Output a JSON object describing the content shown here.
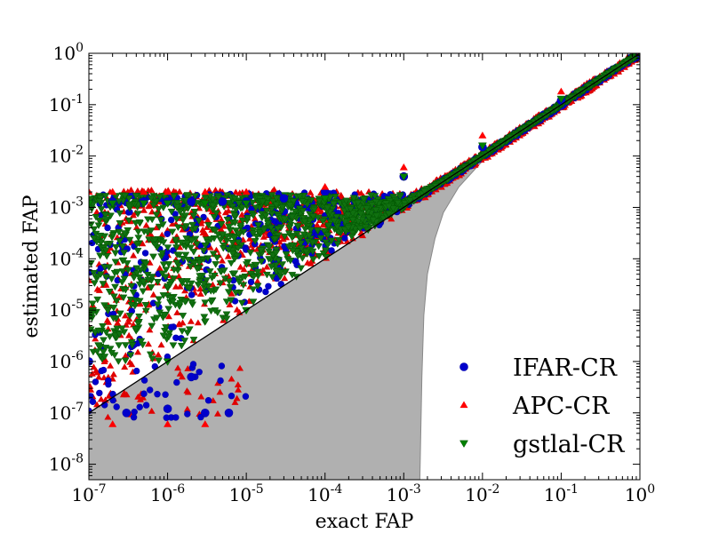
{
  "chart_data": {
    "type": "scatter",
    "title": "",
    "xlabel": "exact FAP",
    "ylabel": "estimated FAP",
    "x_scale": "log",
    "y_scale": "log",
    "xlim": [
      1e-07,
      1
    ],
    "ylim": [
      5e-09,
      1
    ],
    "x_ticks": [
      {
        "base": "10",
        "exp": "-7"
      },
      {
        "base": "10",
        "exp": "-6"
      },
      {
        "base": "10",
        "exp": "-5"
      },
      {
        "base": "10",
        "exp": "-4"
      },
      {
        "base": "10",
        "exp": "-3"
      },
      {
        "base": "10",
        "exp": "-2"
      },
      {
        "base": "10",
        "exp": "-1"
      },
      {
        "base": "10",
        "exp": "0"
      }
    ],
    "y_ticks": [
      {
        "base": "10",
        "exp": "-8"
      },
      {
        "base": "10",
        "exp": "-7"
      },
      {
        "base": "10",
        "exp": "-6"
      },
      {
        "base": "10",
        "exp": "-5"
      },
      {
        "base": "10",
        "exp": "-4"
      },
      {
        "base": "10",
        "exp": "-3"
      },
      {
        "base": "10",
        "exp": "-2"
      },
      {
        "base": "10",
        "exp": "-1"
      },
      {
        "base": "10",
        "exp": "0"
      }
    ],
    "grid": false,
    "legend_position": "bottom-right",
    "reference_line": {
      "x": [
        1e-07,
        1
      ],
      "y": [
        1e-07,
        1
      ],
      "color": "#000000"
    },
    "shaded_region": {
      "color": "#b0b0b0",
      "upper": {
        "x": [
          1e-07,
          1e-05,
          0.0001,
          0.001,
          0.003,
          0.01,
          0.1,
          1
        ],
        "y": [
          1e-07,
          1e-05,
          0.0001,
          0.001,
          0.003,
          0.01,
          0.1,
          1
        ]
      },
      "lower": {
        "x": [
          1e-07,
          0.0016,
          0.0017,
          0.0018,
          0.002,
          0.0025,
          0.0032,
          0.005,
          0.01,
          0.1,
          1
        ],
        "y": [
          5e-09,
          5e-09,
          5e-07,
          8e-06,
          5e-05,
          0.00025,
          0.0008,
          0.0025,
          0.008,
          0.08,
          1
        ]
      }
    },
    "series": [
      {
        "name": "IFAR-CR",
        "marker": "circle",
        "color": "#0000cc",
        "x": [
          1e-07,
          2e-07,
          5e-07,
          1e-06,
          2e-06,
          5e-06,
          1e-05,
          3e-05,
          0.0001,
          0.001,
          0.01,
          0.1,
          1,
          3e-07,
          1e-06,
          3e-06,
          6e-06,
          2e-06
        ],
        "y": [
          1e-06,
          0.0013,
          0.0013,
          0.0013,
          0.0013,
          0.0013,
          0.0013,
          0.0015,
          0.002,
          0.004,
          0.015,
          0.12,
          1,
          1e-07,
          1.2e-07,
          1e-07,
          1e-07,
          5e-07
        ]
      },
      {
        "name": "APC-CR",
        "marker": "triangle-up",
        "color": "#ff0000",
        "x": [
          1e-07,
          2e-07,
          5e-07,
          1e-06,
          3e-06,
          1e-05,
          0.0001,
          0.001,
          0.01,
          0.1,
          1,
          2e-07,
          1e-06,
          3e-06
        ],
        "y": [
          0.002,
          0.002,
          0.002,
          0.002,
          0.002,
          0.002,
          0.0025,
          0.006,
          0.025,
          0.18,
          1,
          6e-08,
          6e-08,
          6e-08
        ]
      },
      {
        "name": "gstlal-CR",
        "marker": "triangle-down",
        "color": "#008000",
        "x": [
          1e-07,
          2e-07,
          5e-07,
          1e-06,
          3e-06,
          1e-05,
          0.0001,
          0.001,
          0.01,
          0.1,
          1,
          1e-06,
          1e-05
        ],
        "y": [
          0.0012,
          0.0012,
          0.0012,
          0.0012,
          0.0012,
          0.0012,
          0.0015,
          0.004,
          0.016,
          0.13,
          1,
          1e-06,
          1e-05
        ]
      }
    ]
  }
}
